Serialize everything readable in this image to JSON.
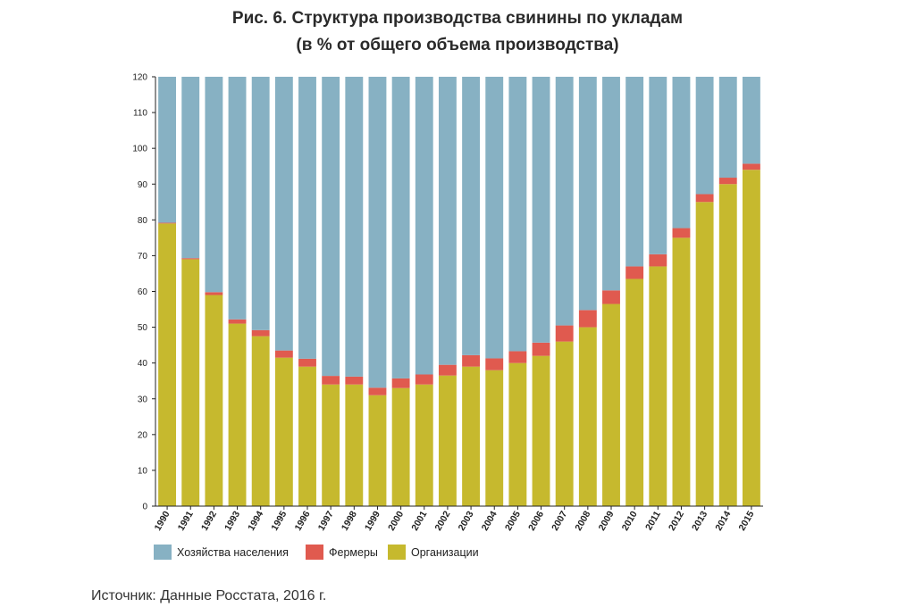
{
  "title": {
    "line1": "Рис. 6. Структура производства свинины по укладам",
    "line2": "(в % от общего объема производства)"
  },
  "source": "Источник: Данные Росстата, 2016 г.",
  "colors": {
    "households": "#87b1c3",
    "farmers": "#e05a4f",
    "organizations": "#c6b92e",
    "axis": "#222222",
    "grid": "#ffffff"
  },
  "chart_data": {
    "type": "bar",
    "stacked": true,
    "categories": [
      "1990",
      "1991",
      "1992",
      "1993",
      "1994",
      "1995",
      "1996",
      "1997",
      "1998",
      "1999",
      "2000",
      "2001",
      "2002",
      "2003",
      "2004",
      "2005",
      "2006",
      "2007",
      "2008",
      "2009",
      "2010",
      "2011",
      "2012",
      "2013",
      "2014",
      "2015"
    ],
    "series": [
      {
        "name": "Организации",
        "key": "organizations",
        "values": [
          79,
          69,
          59,
          51,
          47.5,
          41.5,
          39,
          34,
          34,
          31,
          33,
          34,
          36.5,
          39,
          38,
          40,
          42,
          46,
          50,
          56.5,
          63.5,
          67,
          75,
          85,
          90,
          94
        ]
      },
      {
        "name": "Фермеры",
        "key": "farmers",
        "values": [
          0.2,
          0.3,
          0.8,
          1.2,
          1.7,
          2,
          2.2,
          2.4,
          2.2,
          2.1,
          2.7,
          2.8,
          3,
          3.2,
          3.3,
          3.3,
          3.7,
          4.5,
          4.8,
          3.8,
          3.5,
          3.4,
          2.7,
          2.2,
          1.8,
          1.7
        ]
      },
      {
        "name": "Хозяйства населения",
        "key": "households",
        "values": [
          40.8,
          50.7,
          60.2,
          67.8,
          70.8,
          76.5,
          78.8,
          83.6,
          83.8,
          86.9,
          84.3,
          83.2,
          80.5,
          77.8,
          78.7,
          76.7,
          74.3,
          69.5,
          65.2,
          59.7,
          53,
          49.6,
          42.3,
          32.8,
          28.2,
          24.3
        ]
      }
    ],
    "ylim": [
      0,
      120
    ],
    "yticks": [
      0,
      10,
      20,
      30,
      40,
      50,
      60,
      70,
      80,
      90,
      100,
      110,
      120
    ],
    "legend": {
      "position": "bottom-left",
      "order": [
        "households",
        "farmers",
        "organizations"
      ],
      "labels": {
        "households": "Хозяйства населения",
        "farmers": "Фермеры",
        "organizations": "Организации"
      }
    },
    "xlabel": "",
    "ylabel": ""
  }
}
